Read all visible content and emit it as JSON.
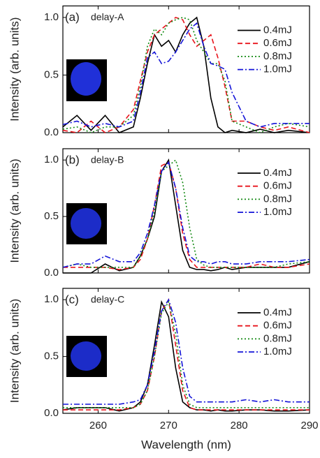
{
  "chart_data": [
    {
      "type": "line",
      "panel_label": "(a)",
      "title": "delay-A",
      "y_label": "Intensity (arb. units)",
      "x": [
        255,
        257,
        259,
        261,
        263,
        265,
        266,
        267,
        268,
        269,
        270,
        271,
        272,
        273,
        274,
        275,
        276,
        277,
        278,
        279,
        281,
        283,
        285,
        287,
        290
      ],
      "xlim": [
        255,
        290
      ],
      "xticks": [
        260,
        270,
        280,
        290
      ],
      "ylim": [
        0,
        1.1
      ],
      "yticks": [
        {
          "value": 0,
          "label": "0.0"
        },
        {
          "value": 0.5,
          "label": "0.5"
        },
        {
          "value": 1,
          "label": "1.0"
        }
      ],
      "series": [
        {
          "name": "0.4mJ",
          "color": "#000000",
          "dash": "none",
          "values": [
            0.05,
            0.15,
            0.02,
            0.15,
            0.0,
            0.05,
            0.3,
            0.6,
            0.85,
            0.75,
            0.8,
            0.7,
            0.85,
            0.95,
            1.0,
            0.75,
            0.3,
            0.05,
            0.0,
            0.02,
            0.0,
            0.03,
            0.0,
            0.02,
            0.0
          ]
        },
        {
          "name": "0.6mJ",
          "color": "#e8141c",
          "dash": "7,4",
          "values": [
            0.02,
            0.0,
            0.1,
            0.0,
            0.05,
            0.2,
            0.45,
            0.7,
            0.85,
            0.9,
            0.95,
            1.0,
            0.98,
            0.85,
            0.75,
            0.8,
            0.85,
            0.65,
            0.4,
            0.1,
            0.1,
            0.05,
            0.02,
            0.05,
            0.0
          ]
        },
        {
          "name": "0.8mJ",
          "color": "#138a13",
          "dash": "2,3",
          "values": [
            0.03,
            0.05,
            0.0,
            0.05,
            0.05,
            0.15,
            0.4,
            0.75,
            0.9,
            0.85,
            0.95,
            0.98,
            1.0,
            0.98,
            0.8,
            0.7,
            0.6,
            0.6,
            0.45,
            0.1,
            0.05,
            0.0,
            0.05,
            0.08,
            0.05
          ]
        },
        {
          "name": "1.0mJ",
          "color": "#1414d8",
          "dash": "8,3,2,3",
          "values": [
            0.07,
            0.1,
            0.05,
            0.08,
            0.05,
            0.1,
            0.35,
            0.65,
            0.7,
            0.6,
            0.62,
            0.7,
            0.8,
            0.9,
            0.95,
            0.75,
            0.6,
            0.58,
            0.55,
            0.35,
            0.1,
            0.05,
            0.08,
            0.08,
            0.08
          ]
        }
      ]
    },
    {
      "type": "line",
      "panel_label": "(b)",
      "title": "delay-B",
      "y_label": "Intensity (arb. units)",
      "x": [
        255,
        257,
        259,
        261,
        263,
        265,
        266,
        267,
        268,
        269,
        270,
        271,
        272,
        273,
        274,
        275,
        276,
        277,
        278,
        279,
        281,
        283,
        285,
        287,
        290
      ],
      "xlim": [
        255,
        290
      ],
      "xticks": [
        260,
        270,
        280,
        290
      ],
      "ylim": [
        0,
        1.1
      ],
      "yticks": [
        {
          "value": 0,
          "label": "0.0"
        },
        {
          "value": 0.5,
          "label": "0.5"
        },
        {
          "value": 1,
          "label": "1.0"
        }
      ],
      "series": [
        {
          "name": "0.4mJ",
          "color": "#000000",
          "dash": "none",
          "values": [
            0.0,
            0.0,
            0.0,
            0.08,
            0.02,
            0.05,
            0.15,
            0.3,
            0.5,
            0.9,
            1.0,
            0.6,
            0.2,
            0.05,
            0.03,
            0.03,
            0.02,
            0.03,
            0.05,
            0.03,
            0.05,
            0.05,
            0.05,
            0.05,
            0.1
          ]
        },
        {
          "name": "0.6mJ",
          "color": "#e8141c",
          "dash": "7,4",
          "values": [
            0.05,
            0.05,
            0.05,
            0.05,
            0.03,
            0.05,
            0.12,
            0.3,
            0.6,
            0.95,
            0.98,
            0.75,
            0.35,
            0.12,
            0.05,
            0.05,
            0.05,
            0.05,
            0.05,
            0.05,
            0.05,
            0.08,
            0.05,
            0.05,
            0.08
          ]
        },
        {
          "name": "0.8mJ",
          "color": "#138a13",
          "dash": "2,3",
          "values": [
            0.05,
            0.08,
            0.05,
            0.05,
            0.05,
            0.05,
            0.15,
            0.3,
            0.55,
            0.9,
            0.95,
            1.0,
            0.8,
            0.4,
            0.12,
            0.07,
            0.05,
            0.05,
            0.05,
            0.05,
            0.05,
            0.05,
            0.05,
            0.08,
            0.1
          ]
        },
        {
          "name": "1.0mJ",
          "color": "#1414d8",
          "dash": "8,3,2,3",
          "values": [
            0.05,
            0.08,
            0.08,
            0.15,
            0.1,
            0.1,
            0.18,
            0.35,
            0.6,
            0.9,
            0.98,
            0.75,
            0.4,
            0.15,
            0.1,
            0.1,
            0.08,
            0.1,
            0.1,
            0.08,
            0.08,
            0.1,
            0.1,
            0.1,
            0.12
          ]
        }
      ]
    },
    {
      "type": "line",
      "panel_label": "(c)",
      "title": "delay-C",
      "y_label": "Intensity (arb. units)",
      "x_label": "Wavelength (nm)",
      "x": [
        255,
        257,
        259,
        261,
        263,
        265,
        266,
        267,
        268,
        269,
        270,
        271,
        272,
        273,
        274,
        275,
        276,
        277,
        278,
        279,
        281,
        283,
        285,
        287,
        290
      ],
      "xlim": [
        255,
        290
      ],
      "xticks": [
        260,
        270,
        280,
        290
      ],
      "ylim": [
        0,
        1.1
      ],
      "yticks": [
        {
          "value": 0,
          "label": "0.0"
        },
        {
          "value": 0.5,
          "label": "0.5"
        },
        {
          "value": 1,
          "label": "1.0"
        }
      ],
      "series": [
        {
          "name": "0.4mJ",
          "color": "#000000",
          "dash": "none",
          "values": [
            0.03,
            0.05,
            0.05,
            0.05,
            0.02,
            0.05,
            0.1,
            0.25,
            0.6,
            0.98,
            0.85,
            0.4,
            0.1,
            0.05,
            0.03,
            0.03,
            0.02,
            0.03,
            0.02,
            0.02,
            0.03,
            0.03,
            0.02,
            0.02,
            0.03
          ]
        },
        {
          "name": "0.6mJ",
          "color": "#e8141c",
          "dash": "7,4",
          "values": [
            0.03,
            0.03,
            0.03,
            0.03,
            0.03,
            0.05,
            0.08,
            0.2,
            0.5,
            0.9,
            1.0,
            0.6,
            0.2,
            0.05,
            0.03,
            0.03,
            0.03,
            0.03,
            0.03,
            0.03,
            0.03,
            0.03,
            0.03,
            0.03,
            0.03
          ]
        },
        {
          "name": "0.8mJ",
          "color": "#138a13",
          "dash": "2,3",
          "values": [
            0.05,
            0.05,
            0.05,
            0.05,
            0.05,
            0.05,
            0.08,
            0.2,
            0.5,
            0.88,
            0.98,
            0.7,
            0.25,
            0.08,
            0.05,
            0.05,
            0.05,
            0.05,
            0.05,
            0.05,
            0.05,
            0.05,
            0.05,
            0.05,
            0.05
          ]
        },
        {
          "name": "1.0mJ",
          "color": "#1414d8",
          "dash": "8,3,2,3",
          "values": [
            0.08,
            0.08,
            0.08,
            0.08,
            0.08,
            0.1,
            0.12,
            0.25,
            0.55,
            0.9,
            1.0,
            0.8,
            0.4,
            0.15,
            0.1,
            0.1,
            0.1,
            0.1,
            0.1,
            0.1,
            0.12,
            0.1,
            0.12,
            0.1,
            0.1
          ]
        }
      ]
    }
  ]
}
